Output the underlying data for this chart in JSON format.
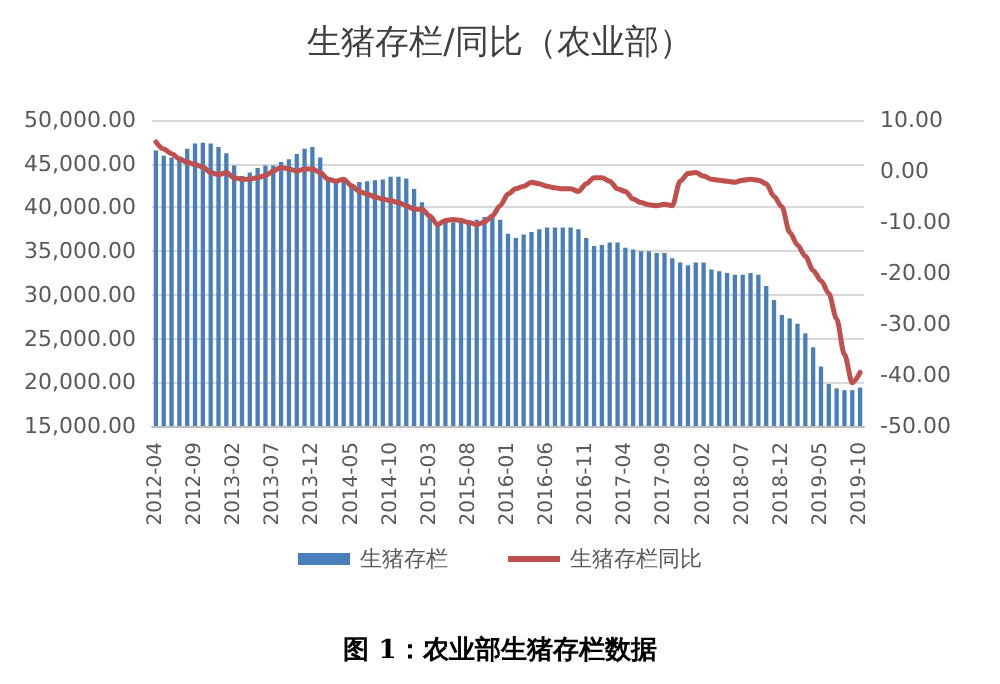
{
  "chart_data": {
    "type": "bar",
    "title": "生猪存栏/同比（农业部）",
    "annotations": [
      "图 1：农业部生猪存栏数据"
    ],
    "categories": [
      "2012-04",
      null,
      null,
      null,
      null,
      "2012-09",
      null,
      null,
      null,
      null,
      "2013-02",
      null,
      null,
      null,
      null,
      "2013-07",
      null,
      null,
      null,
      null,
      "2013-12",
      null,
      null,
      null,
      null,
      "2014-05",
      null,
      null,
      null,
      null,
      "2014-10",
      null,
      null,
      null,
      null,
      "2015-03",
      null,
      null,
      null,
      null,
      "2015-08",
      null,
      null,
      null,
      null,
      "2016-01",
      null,
      null,
      null,
      null,
      "2016-06",
      null,
      null,
      null,
      null,
      "2016-11",
      null,
      null,
      null,
      null,
      "2017-04",
      null,
      null,
      null,
      null,
      "2017-09",
      null,
      null,
      null,
      null,
      "2018-02",
      null,
      null,
      null,
      null,
      "2018-07",
      null,
      null,
      null,
      null,
      "2018-12",
      null,
      null,
      null,
      null,
      "2019-05",
      null,
      null,
      null,
      null,
      "2019-10"
    ],
    "series": [
      {
        "name": "生猪存栏",
        "color": "#4a7ebb",
        "values": [
          46500,
          45900,
          45700,
          45500,
          46700,
          47300,
          47400,
          47300,
          46900,
          46200,
          44800,
          43600,
          44000,
          44500,
          44800,
          44800,
          45200,
          45500,
          46100,
          46700,
          46900,
          45700,
          43200,
          42900,
          42900,
          42600,
          42900,
          43000,
          43100,
          43200,
          43500,
          43500,
          43300,
          42100,
          40600,
          39000,
          38300,
          38300,
          38300,
          38300,
          38300,
          38600,
          38900,
          38900,
          38600,
          37000,
          36500,
          36900,
          37200,
          37500,
          37700,
          37700,
          37700,
          37700,
          37500,
          36500,
          35600,
          35700,
          36000,
          36000,
          35400,
          35200,
          35000,
          35000,
          34800,
          34800,
          34200,
          33700,
          33400,
          33700,
          33700,
          32900,
          32700,
          32500,
          32300,
          32300,
          32500,
          32300,
          31000,
          29400,
          27700,
          27300,
          26700,
          25600,
          24000,
          21800,
          19800,
          19300,
          19100,
          19100,
          19400
        ]
      },
      {
        "name": "生猪存栏同比",
        "type": "line",
        "axis": "y2",
        "color": "#c0504d",
        "values": [
          5.7,
          4.3,
          3.4,
          2.4,
          1.7,
          1.3,
          0.8,
          -0.3,
          -0.7,
          -0.3,
          -1.3,
          -1.6,
          -1.6,
          -1.3,
          -0.9,
          0,
          0.7,
          0.4,
          0,
          0.4,
          0.4,
          -0.3,
          -1.6,
          -2,
          -1.6,
          -2.9,
          -4,
          -4.5,
          -5.1,
          -5.5,
          -5.8,
          -6.2,
          -6.8,
          -7.5,
          -7.5,
          -8.8,
          -10.5,
          -9.7,
          -9.5,
          -9.7,
          -10.1,
          -10.5,
          -10,
          -8.8,
          -6.8,
          -4.5,
          -3.5,
          -3,
          -2.2,
          -2.5,
          -3,
          -3.3,
          -3.5,
          -3.5,
          -4,
          -2.5,
          -1.3,
          -1.3,
          -2,
          -3.5,
          -4,
          -5.5,
          -6.2,
          -6.6,
          -6.8,
          -6.5,
          -6.8,
          -2,
          -0.5,
          -0.3,
          -1,
          -1.6,
          -1.8,
          -2,
          -2.2,
          -1.8,
          -1.6,
          -1.8,
          -2.5,
          -5,
          -7,
          -12,
          -14.5,
          -16.7,
          -19.5,
          -21.5,
          -24,
          -29,
          -36,
          -41.5,
          -39.5
        ]
      }
    ],
    "ylim": [
      15000,
      50000
    ],
    "yticks": [
      {
        "value": 15000,
        "label": "15,000.00"
      },
      {
        "value": 20000,
        "label": "20,000.00"
      },
      {
        "value": 25000,
        "label": "25,000.00"
      },
      {
        "value": 30000,
        "label": "30,000.00"
      },
      {
        "value": 35000,
        "label": "35,000.00"
      },
      {
        "value": 40000,
        "label": "40,000.00"
      },
      {
        "value": 45000,
        "label": "45,000.00"
      },
      {
        "value": 50000,
        "label": "50,000.00"
      }
    ],
    "y2lim": [
      -50,
      10
    ],
    "y2ticks": [
      {
        "value": -50,
        "label": "-50.00"
      },
      {
        "value": -40,
        "label": "-40.00"
      },
      {
        "value": -30,
        "label": "-30.00"
      },
      {
        "value": -20,
        "label": "-20.00"
      },
      {
        "value": -10,
        "label": "-10.00"
      },
      {
        "value": 0,
        "label": "0.00"
      },
      {
        "value": 10,
        "label": "10.00"
      }
    ],
    "grid": "y",
    "legend": "bottom",
    "marker": "none",
    "line_style": "solid"
  }
}
